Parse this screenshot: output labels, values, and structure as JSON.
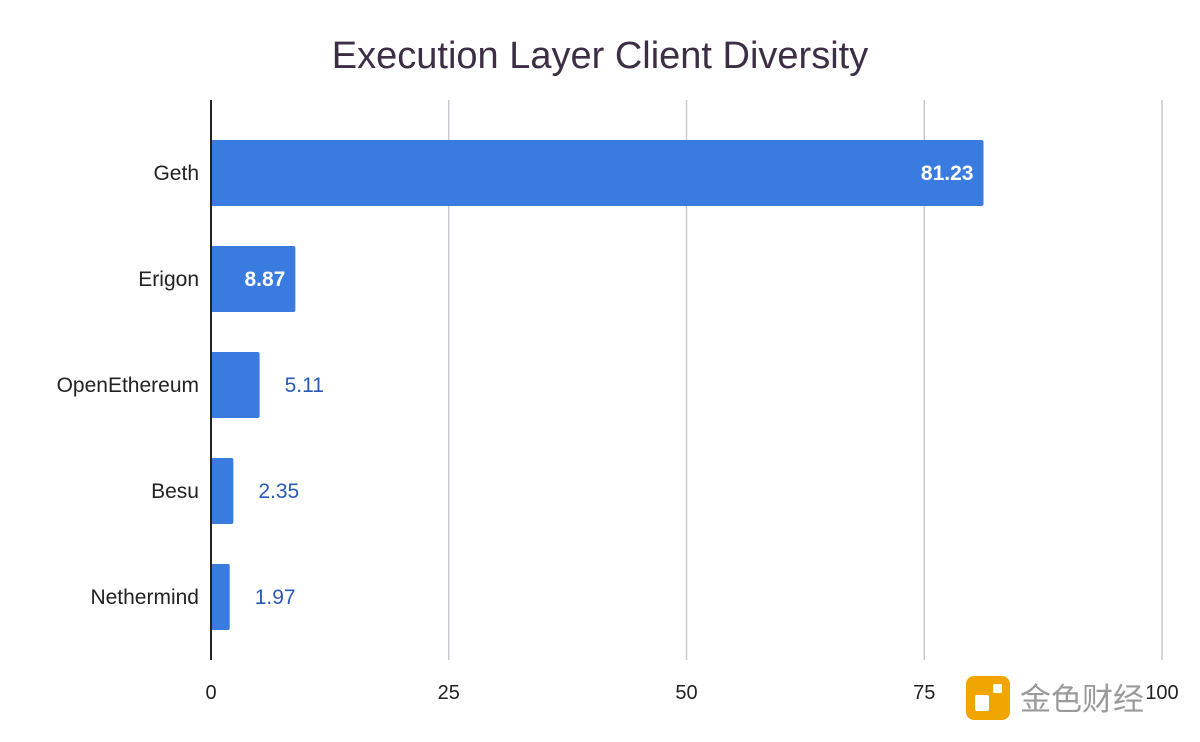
{
  "chart_data": {
    "type": "bar",
    "orientation": "horizontal",
    "title": "Execution Layer Client Diversity",
    "categories": [
      "Geth",
      "Erigon",
      "OpenEthereum",
      "Besu",
      "Nethermind"
    ],
    "values": [
      81.23,
      8.87,
      5.11,
      2.35,
      1.97
    ],
    "value_labels": [
      "81.23",
      "8.87",
      "5.11",
      "2.35",
      "1.97"
    ],
    "xlim": [
      0,
      100
    ],
    "xticks": [
      0,
      25,
      50,
      75,
      100
    ],
    "xtick_labels": [
      "0",
      "25",
      "50",
      "75",
      "100"
    ],
    "xlabel": "",
    "ylabel": "",
    "grid": true,
    "bar_color": "#3a7be0",
    "outside_label_color": "#2a5ab8"
  },
  "watermark": {
    "text": "金色财经",
    "icon": "jinse-logo-icon",
    "color": "#f0a500"
  }
}
